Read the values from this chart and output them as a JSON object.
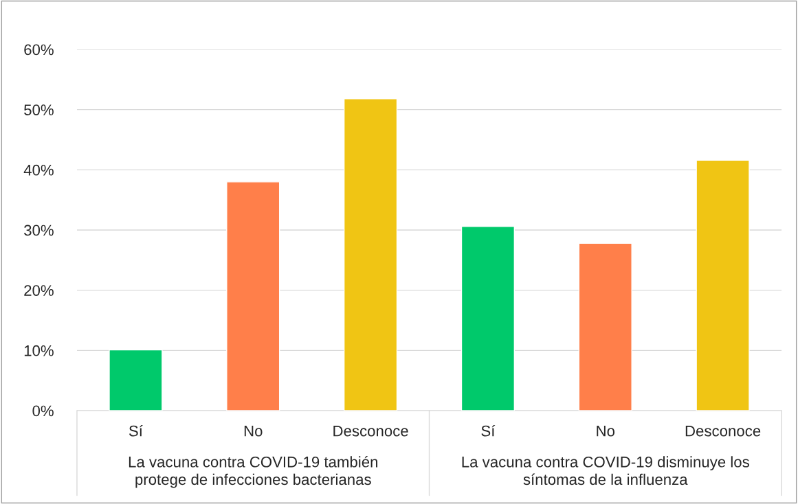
{
  "chart_data": {
    "type": "bar",
    "categories": [
      "Sí",
      "No",
      "Desconoce",
      "Sí",
      "No",
      "Desconoce"
    ],
    "values": [
      10.1,
      38.0,
      51.8,
      30.6,
      27.8,
      41.6
    ],
    "colors": [
      "#00c96b",
      "#ff7f4a",
      "#f0c514",
      "#00c96b",
      "#ff7f4a",
      "#f0c514"
    ],
    "ylim": [
      0,
      60
    ],
    "yticks": [
      {
        "value": 0,
        "label": "0%"
      },
      {
        "value": 10,
        "label": "10%"
      },
      {
        "value": 20,
        "label": "20%"
      },
      {
        "value": 30,
        "label": "30%"
      },
      {
        "value": 40,
        "label": "40%"
      },
      {
        "value": 50,
        "label": "50%"
      },
      {
        "value": 60,
        "label": "60%"
      }
    ],
    "grid": "y",
    "annotations": [
      "La vacuna contra COVID-19 también\nprotege de infecciones bacterianas",
      "La vacuna contra COVID-19 disminuye los\nsíntomas de la influenza"
    ]
  }
}
